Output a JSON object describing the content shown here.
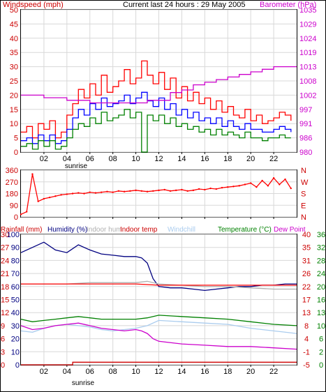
{
  "header": {
    "windspeed_label": "Windspeed (mph)",
    "current_label": "Current last 24 hours : 29 May 2005",
    "barometer_label": "Barometer (hPa)"
  },
  "x_axis": {
    "ticks": [
      "02",
      "04",
      "06",
      "08",
      "10",
      "12",
      "14",
      "16",
      "18",
      "20",
      "22"
    ],
    "sunrise_label": "sunrise"
  },
  "colors": {
    "red": "#ff0000",
    "blue": "#0000ff",
    "green": "#008000",
    "magenta": "#cc00cc",
    "navy": "#000080",
    "gray": "#b0b0b0",
    "lightblue": "#aaccee",
    "darkred": "#cc0000"
  },
  "chart_data": [
    {
      "type": "line",
      "panel": "wind_barometer",
      "x_range": [
        0,
        24
      ],
      "ylim_left": [
        0,
        50
      ],
      "ylim_right": [
        980,
        1035
      ],
      "left_ticks": [
        0,
        5,
        10,
        15,
        20,
        25,
        30,
        35,
        40,
        45,
        50
      ],
      "right_ticks": [
        980,
        986,
        991,
        997,
        1002,
        1008,
        1013,
        1019,
        1024,
        1029,
        1035
      ],
      "ylabel_left": "Windspeed (mph)",
      "ylabel_right": "Barometer (hPa)",
      "series": [
        {
          "name": "",
          "color": "red",
          "x": [
            0,
            0.5,
            1,
            1.5,
            2,
            2.5,
            3,
            3.5,
            4,
            4.5,
            5,
            5.5,
            6,
            6.5,
            7,
            7.5,
            8,
            8.5,
            9,
            9.5,
            10,
            10.5,
            11,
            11.5,
            12,
            12.5,
            13,
            13.5,
            14,
            14.5,
            15,
            15.5,
            16,
            16.5,
            17,
            17.5,
            18,
            18.5,
            19,
            19.5,
            20,
            20.5,
            21,
            21.5,
            22,
            22.5,
            23,
            23.5
          ],
          "values": [
            7,
            9,
            5,
            10,
            8,
            11,
            5,
            7,
            13,
            17,
            22,
            19,
            24,
            20,
            27,
            21,
            23,
            25,
            29,
            24,
            26,
            32,
            27,
            24,
            28,
            22,
            26,
            19,
            23,
            18,
            21,
            17,
            19,
            15,
            18,
            14,
            16,
            13,
            12,
            15,
            11,
            13,
            10,
            11,
            12,
            14,
            13,
            11
          ]
        },
        {
          "name": "",
          "color": "blue",
          "x": [
            0,
            0.5,
            1,
            1.5,
            2,
            2.5,
            3,
            3.5,
            4,
            4.5,
            5,
            5.5,
            6,
            6.5,
            7,
            7.5,
            8,
            8.5,
            9,
            9.5,
            10,
            10.5,
            11,
            11.5,
            12,
            12.5,
            13,
            13.5,
            14,
            14.5,
            15,
            15.5,
            16,
            16.5,
            17,
            17.5,
            18,
            18.5,
            19,
            19.5,
            20,
            20.5,
            21,
            21.5,
            22,
            22.5,
            23,
            23.5
          ],
          "values": [
            4,
            5,
            3,
            6,
            4,
            6,
            3,
            4,
            8,
            12,
            15,
            13,
            17,
            15,
            19,
            16,
            17,
            18,
            20,
            17,
            19,
            21,
            18,
            16,
            19,
            15,
            17,
            13,
            15,
            12,
            14,
            11,
            12,
            10,
            12,
            9,
            11,
            9,
            8,
            10,
            8,
            8,
            7,
            7,
            8,
            9,
            8,
            7
          ]
        },
        {
          "name": "",
          "color": "green",
          "x": [
            0,
            0.5,
            1,
            1.5,
            2,
            2.5,
            3,
            3.5,
            4,
            4.5,
            5,
            5.5,
            6,
            6.5,
            7,
            7.5,
            8,
            8.5,
            9,
            9.5,
            10,
            10.5,
            11,
            11.5,
            12,
            12.5,
            13,
            13.5,
            14,
            14.5,
            15,
            15.5,
            16,
            16.5,
            17,
            17.5,
            18,
            18.5,
            19,
            19.5,
            20,
            20.5,
            21,
            21.5,
            22,
            22.5,
            23,
            23.5
          ],
          "values": [
            2,
            3,
            1,
            4,
            2,
            4,
            1,
            2,
            5,
            8,
            10,
            9,
            12,
            10,
            14,
            11,
            12,
            13,
            15,
            12,
            14,
            0,
            13,
            11,
            13,
            10,
            12,
            9,
            10,
            8,
            9,
            7,
            8,
            6,
            8,
            6,
            7,
            6,
            5,
            7,
            5,
            5,
            4,
            5,
            5,
            6,
            5,
            5
          ]
        },
        {
          "name": "",
          "axis": "right",
          "color": "magenta",
          "x": [
            0,
            1,
            2,
            3,
            4,
            5,
            6,
            7,
            8,
            9,
            10,
            11,
            12,
            13,
            14,
            15,
            16,
            17,
            18,
            19,
            20,
            21,
            22,
            23,
            24
          ],
          "values": [
            1002,
            1002,
            1001,
            1001,
            1000,
            1000,
            999,
            999,
            999,
            999,
            999,
            1000,
            1000,
            1003,
            1004,
            1006,
            1007,
            1008,
            1009,
            1010,
            1011,
            1012,
            1013,
            1013,
            1013
          ]
        }
      ]
    },
    {
      "type": "scatter",
      "panel": "wind_direction",
      "x_range": [
        0,
        24
      ],
      "ylim": [
        0,
        360
      ],
      "left_ticks": [
        0,
        90,
        180,
        270,
        360
      ],
      "right_ticks": [
        "N",
        "E",
        "S",
        "W",
        "N"
      ],
      "series": [
        {
          "name": "",
          "color": "red",
          "x": [
            0,
            0.5,
            1,
            1.5,
            2,
            2.5,
            3,
            3.5,
            4,
            4.5,
            5,
            5.5,
            6,
            6.5,
            7,
            7.5,
            8,
            8.5,
            9,
            9.5,
            10,
            10.5,
            11,
            11.5,
            12,
            12.5,
            13,
            13.5,
            14,
            14.5,
            15,
            15.5,
            16,
            16.5,
            17,
            17.5,
            18,
            18.5,
            19,
            19.5,
            20,
            20.5,
            21,
            21.5,
            22,
            22.5,
            23,
            23.5
          ],
          "values": [
            20,
            40,
            330,
            120,
            140,
            150,
            160,
            170,
            175,
            180,
            185,
            180,
            190,
            185,
            190,
            195,
            190,
            200,
            195,
            200,
            205,
            200,
            195,
            200,
            205,
            210,
            200,
            205,
            210,
            200,
            205,
            215,
            210,
            220,
            215,
            225,
            230,
            235,
            240,
            250,
            260,
            230,
            280,
            240,
            300,
            250,
            290,
            220
          ]
        }
      ]
    },
    {
      "type": "line",
      "panel": "temperature_humidity",
      "x_range": [
        0,
        24
      ],
      "ylim_left": [
        0,
        100
      ],
      "ylim_right": [
        -5,
        40
      ],
      "left_ticks_rainfall": [
        0,
        3,
        6,
        9,
        12,
        15,
        18,
        21,
        24,
        27,
        30
      ],
      "left_ticks_humidity": [
        0,
        10,
        20,
        30,
        40,
        50,
        60,
        70,
        80,
        90,
        100
      ],
      "right_ticks_temp": [
        -5,
        -1,
        4,
        8,
        13,
        17,
        22,
        26,
        31,
        35,
        40
      ],
      "right_ticks_dew": [
        0,
        2,
        6,
        10,
        13,
        16,
        20,
        24,
        28,
        32,
        36
      ],
      "legend": [
        "Rainfall (mm)",
        "Humidity (%)",
        "Indoor hum",
        "Indoor temp",
        "Windchill",
        "Temperature (°C)",
        "Dew Point"
      ],
      "series": [
        {
          "name": "Humidity (%)",
          "color": "navy",
          "x": [
            0,
            1,
            2,
            3,
            4,
            5,
            6,
            7,
            8,
            9,
            10,
            10.5,
            11,
            11.5,
            12,
            13,
            14,
            15,
            16,
            17,
            18,
            19,
            20,
            21,
            22,
            23,
            24
          ],
          "values": [
            86,
            90,
            94,
            88,
            86,
            92,
            88,
            85,
            84,
            83,
            83,
            82,
            78,
            66,
            60,
            59,
            59,
            58,
            57,
            58,
            59,
            60,
            60,
            61,
            61,
            62,
            62
          ]
        },
        {
          "name": "Indoor hum",
          "color": "gray",
          "x": [
            0,
            2,
            4,
            6,
            8,
            10,
            11,
            12,
            14,
            16,
            18,
            20,
            22,
            24
          ],
          "values": [
            62,
            62,
            62,
            63,
            63,
            63,
            64,
            62,
            61,
            60,
            60,
            59,
            58,
            58
          ]
        },
        {
          "name": "Indoor temp",
          "color": "red",
          "x": [
            0,
            2,
            4,
            6,
            8,
            10,
            12,
            14,
            16,
            18,
            20,
            22,
            24
          ],
          "values": [
            62,
            62,
            62,
            62,
            62,
            62,
            61,
            61,
            61,
            61,
            61,
            61,
            61
          ]
        },
        {
          "name": "Temperature (°C)",
          "color": "green",
          "x": [
            0,
            1,
            2,
            3,
            4,
            5,
            6,
            7,
            8,
            9,
            10,
            11,
            12,
            14,
            16,
            18,
            20,
            22,
            24
          ],
          "values": [
            35,
            33,
            34,
            35,
            36,
            37,
            36,
            35,
            35,
            35,
            35,
            36,
            38,
            37,
            36,
            35,
            33,
            31,
            30
          ]
        },
        {
          "name": "Windchill",
          "color": "lightblue",
          "x": [
            0,
            1,
            2,
            3,
            4,
            5,
            6,
            7,
            8,
            9,
            10,
            11,
            12,
            14,
            16,
            18,
            20,
            22,
            24
          ],
          "values": [
            26,
            25,
            28,
            30,
            31,
            30,
            29,
            27,
            26,
            27,
            28,
            30,
            34,
            33,
            32,
            31,
            28,
            26,
            24
          ]
        },
        {
          "name": "Dew Point",
          "color": "magenta",
          "x": [
            0,
            1,
            2,
            3,
            4,
            5,
            6,
            7,
            8,
            9,
            10,
            10.5,
            11,
            11.5,
            12,
            14,
            16,
            18,
            20,
            22,
            24
          ],
          "values": [
            30,
            27,
            28,
            30,
            31,
            32,
            30,
            28,
            27,
            26,
            27,
            26,
            24,
            20,
            18,
            16,
            15,
            14,
            14,
            13,
            12
          ]
        },
        {
          "name": "Rainfall (mm)",
          "color": "darkred",
          "x": [
            0,
            4.5,
            4.5,
            24
          ],
          "values": [
            0,
            0,
            2,
            2
          ]
        }
      ]
    }
  ]
}
